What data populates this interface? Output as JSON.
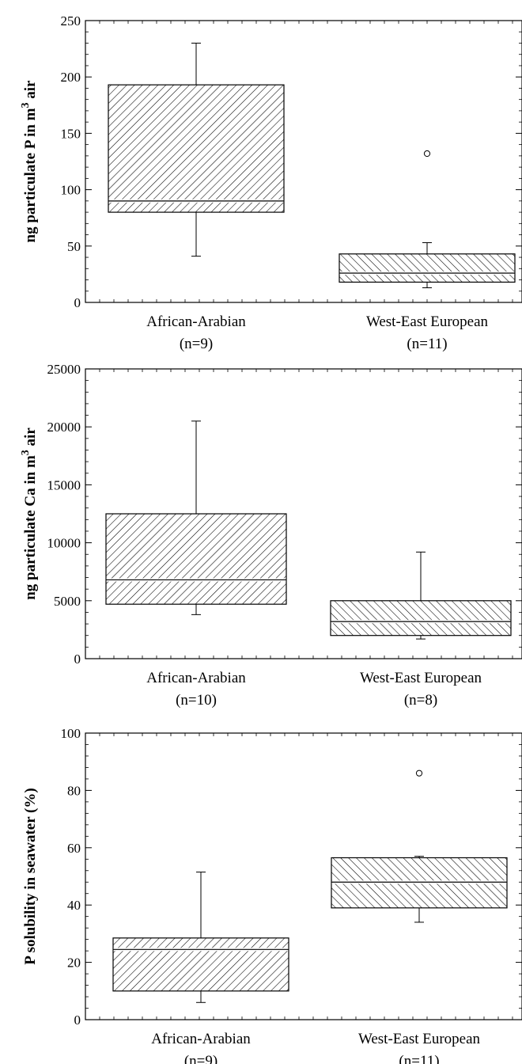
{
  "chart_data": [
    {
      "type": "box",
      "title": "",
      "ylabel": "ng particulate P in m",
      "ylabel_sup": "3",
      "ylabel_tail": " air",
      "ylim": [
        0,
        250
      ],
      "yticks": [
        0,
        50,
        100,
        150,
        200,
        250
      ],
      "grid": false,
      "categories": [
        {
          "name": "African-Arabian",
          "n": "(n=9)",
          "pattern": "diag-right",
          "whisker_low": 41,
          "q1": 80,
          "median": 90,
          "q3": 193,
          "whisker_high": 230,
          "outliers": []
        },
        {
          "name": "West-East European",
          "n": "(n=11)",
          "pattern": "diag-left",
          "whisker_low": 13,
          "q1": 18,
          "median": 26,
          "q3": 43,
          "whisker_high": 53,
          "outliers": [
            132
          ]
        }
      ]
    },
    {
      "type": "box",
      "title": "",
      "ylabel": "ng particulate Ca in m",
      "ylabel_sup": "3",
      "ylabel_tail": " air",
      "ylim": [
        0,
        25000
      ],
      "yticks": [
        0,
        5000,
        10000,
        15000,
        20000,
        25000
      ],
      "grid": false,
      "categories": [
        {
          "name": "African-Arabian",
          "n": "(n=10)",
          "pattern": "diag-right",
          "whisker_low": 3800,
          "q1": 4700,
          "median": 6800,
          "q3": 12500,
          "whisker_high": 20500,
          "outliers": []
        },
        {
          "name": "West-East European",
          "n": "(n=8)",
          "pattern": "diag-left",
          "whisker_low": 1700,
          "q1": 2000,
          "median": 3200,
          "q3": 5000,
          "whisker_high": 9200,
          "outliers": []
        }
      ]
    },
    {
      "type": "box",
      "title": "",
      "ylabel": "P solubility in seawater (%)",
      "ylabel_sup": "",
      "ylabel_tail": "",
      "ylim": [
        0,
        100
      ],
      "yticks": [
        0,
        20,
        40,
        60,
        80,
        100
      ],
      "grid": false,
      "categories": [
        {
          "name": "African-Arabian",
          "n": "(n=9)",
          "pattern": "diag-right",
          "whisker_low": 6,
          "q1": 10,
          "median": 24.5,
          "q3": 28.5,
          "whisker_high": 51.5,
          "outliers": []
        },
        {
          "name": "West-East European",
          "n": "(n=11)",
          "pattern": "diag-left",
          "whisker_low": 34,
          "q1": 39,
          "median": 48,
          "q3": 56.5,
          "whisker_high": 57,
          "outliers": [
            86
          ]
        }
      ]
    }
  ]
}
